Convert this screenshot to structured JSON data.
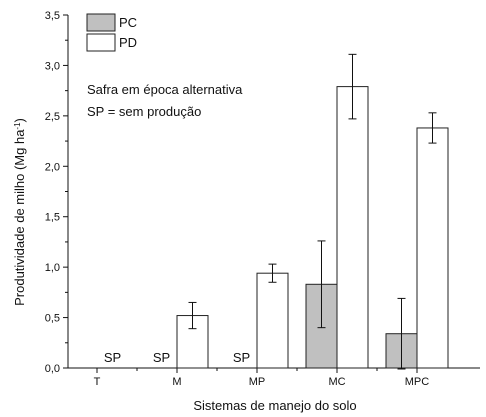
{
  "chart_data": {
    "type": "bar",
    "xlabel": "Sistemas de manejo do solo",
    "ylabel": "Produtividade de milho (Mg ha",
    "ylabel_sup": "-1",
    "ylabel_close": ")",
    "ylim": [
      0,
      3.5
    ],
    "yticks": [
      "0,0",
      "0,5",
      "1,0",
      "1,5",
      "2,0",
      "2,5",
      "3,0",
      "3,5"
    ],
    "categories": [
      "T",
      "M",
      "MP",
      "MC",
      "MPC"
    ],
    "series": [
      {
        "name": "PC",
        "color": "#c0c0c0",
        "values": [
          null,
          null,
          null,
          0.83,
          0.34
        ],
        "errors": [
          null,
          null,
          null,
          0.43,
          0.35
        ]
      },
      {
        "name": "PD",
        "color": "#ffffff",
        "values": [
          null,
          0.52,
          0.94,
          2.79,
          2.38
        ],
        "errors": [
          null,
          0.13,
          0.09,
          0.32,
          0.15
        ]
      }
    ],
    "annotations": [
      "Safra em época alternativa",
      "SP = sem produção"
    ],
    "sp_label": "SP",
    "sp_marks": [
      {
        "category": "T",
        "series": "PD"
      },
      {
        "category": "M",
        "series": "PC"
      },
      {
        "category": "MP",
        "series": "PC"
      }
    ],
    "grid": false,
    "legend_position": "top-left"
  }
}
